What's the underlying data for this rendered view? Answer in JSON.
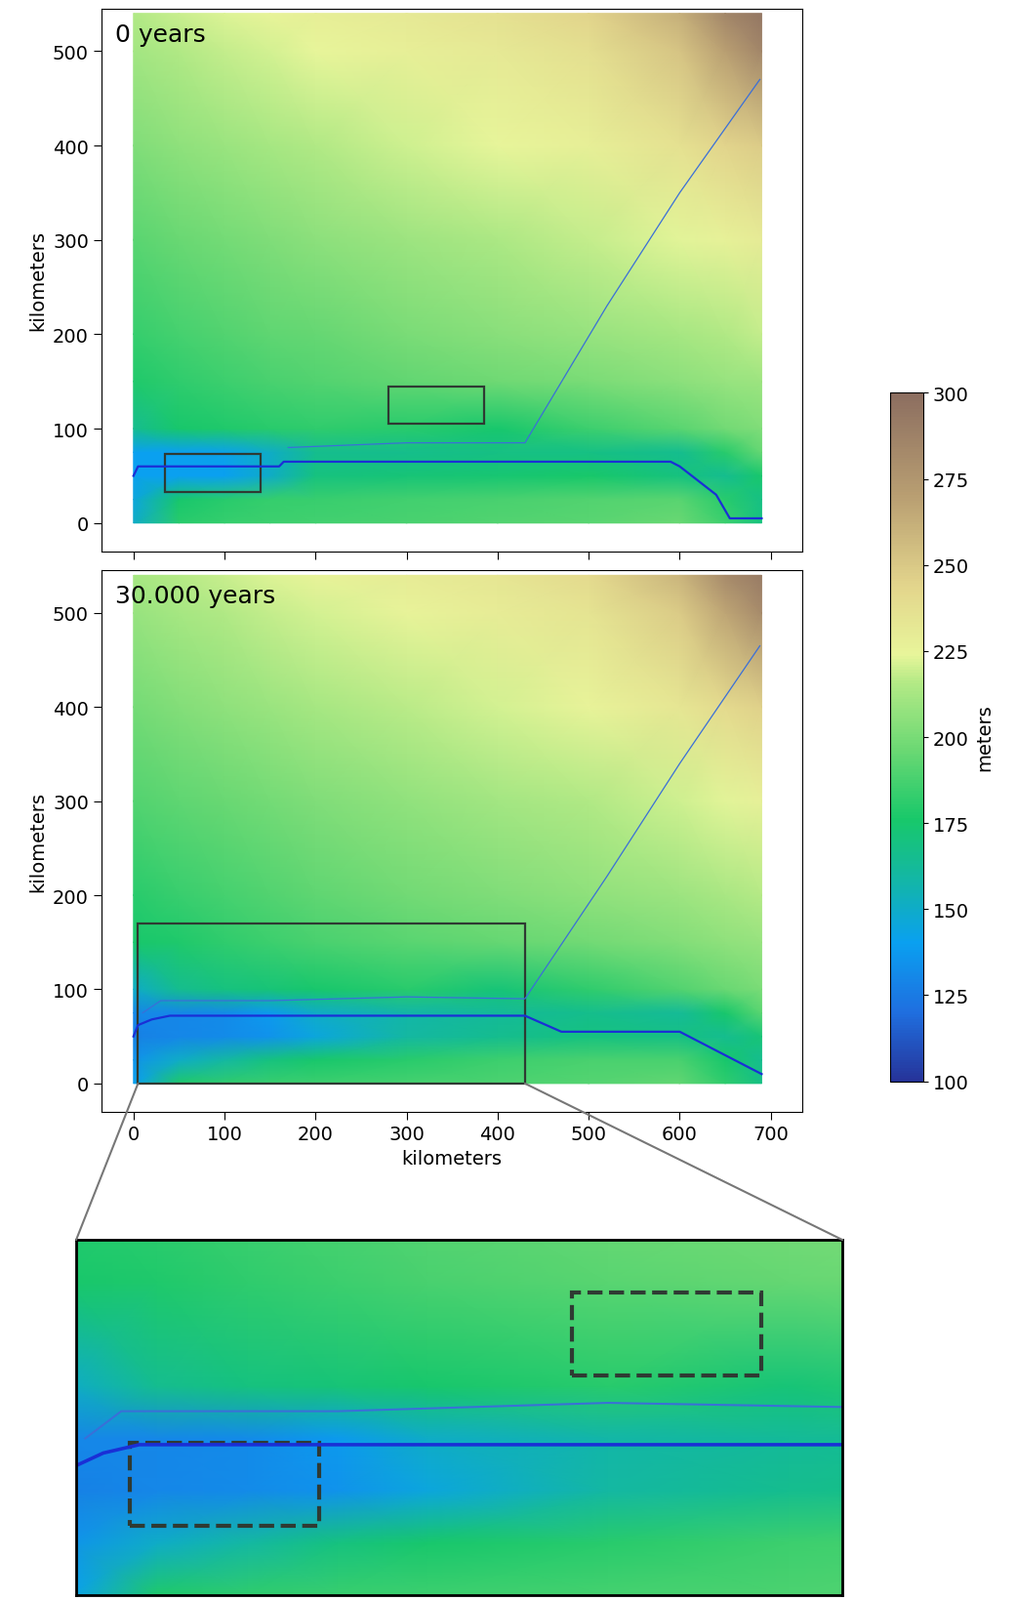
{
  "chart_data": [
    {
      "type": "heatmap",
      "title": "0 years",
      "ylabel": "kilometers",
      "tick_labels": "y",
      "xlim": [
        -35,
        735
      ],
      "ylim": [
        -30,
        545
      ],
      "xticks": [
        0,
        100,
        200,
        300,
        400,
        500,
        600,
        700
      ],
      "yticks": [
        0,
        100,
        200,
        300,
        400,
        500
      ],
      "x": [
        0,
        50,
        100,
        150,
        200,
        300,
        400,
        500,
        600,
        650,
        690
      ],
      "y": [
        0,
        25,
        50,
        75,
        100,
        150,
        200,
        300,
        400,
        500,
        540
      ],
      "values": [
        [
          150,
          180,
          183,
          185,
          186,
          188,
          190,
          192,
          196,
          185,
          170
        ],
        [
          145,
          175,
          180,
          183,
          184,
          186,
          188,
          190,
          192,
          180,
          168
        ],
        [
          140,
          140,
          140,
          150,
          170,
          172,
          174,
          176,
          170,
          165,
          175
        ],
        [
          140,
          140,
          142,
          150,
          165,
          166,
          168,
          168,
          165,
          180,
          195
        ],
        [
          165,
          175,
          178,
          180,
          182,
          180,
          175,
          185,
          192,
          198,
          202
        ],
        [
          178,
          182,
          185,
          188,
          190,
          194,
          197,
          200,
          205,
          208,
          210
        ],
        [
          183,
          187,
          190,
          193,
          195,
          200,
          204,
          208,
          212,
          215,
          218
        ],
        [
          192,
          196,
          199,
          202,
          205,
          210,
          214,
          218,
          223,
          226,
          230
        ],
        [
          202,
          206,
          209,
          212,
          215,
          220,
          224,
          228,
          236,
          244,
          248
        ],
        [
          211,
          215,
          218,
          221,
          224,
          228,
          232,
          238,
          252,
          270,
          285
        ],
        [
          215,
          219,
          222,
          225,
          228,
          232,
          236,
          244,
          262,
          285,
          295
        ]
      ],
      "rivers": [
        {
          "x": [
            0,
            5,
            100,
            160,
            165,
            590,
            600,
            640,
            655,
            690
          ],
          "y": [
            50,
            60,
            60,
            60,
            65,
            65,
            60,
            30,
            5,
            5
          ],
          "color": "#1a2fd6"
        },
        {
          "x": [
            688,
            600,
            520,
            430,
            300,
            170
          ],
          "y": [
            470,
            350,
            230,
            85,
            85,
            80
          ],
          "color": "#3a6fd8"
        }
      ],
      "boxes": [
        [
          35,
          33,
          105,
          40
        ],
        [
          280,
          105,
          105,
          40
        ]
      ]
    },
    {
      "type": "heatmap",
      "title": "30.000 years",
      "xlabel": "kilometers",
      "ylabel": "kilometers",
      "xlim": [
        -35,
        735
      ],
      "ylim": [
        -30,
        545
      ],
      "xticks": [
        0,
        100,
        200,
        300,
        400,
        500,
        600,
        700
      ],
      "yticks": [
        0,
        100,
        200,
        300,
        400,
        500
      ],
      "x": [
        0,
        50,
        100,
        150,
        200,
        300,
        400,
        500,
        600,
        650,
        690
      ],
      "y": [
        0,
        25,
        50,
        75,
        100,
        150,
        200,
        300,
        400,
        500,
        540
      ],
      "values": [
        [
          140,
          178,
          182,
          184,
          185,
          187,
          189,
          191,
          194,
          182,
          168
        ],
        [
          135,
          150,
          160,
          170,
          175,
          180,
          185,
          188,
          188,
          175,
          165
        ],
        [
          128,
          130,
          132,
          135,
          145,
          160,
          165,
          170,
          168,
          165,
          172
        ],
        [
          130,
          130,
          132,
          138,
          150,
          158,
          162,
          166,
          163,
          175,
          192
        ],
        [
          150,
          165,
          170,
          172,
          175,
          180,
          172,
          182,
          190,
          196,
          200
        ],
        [
          175,
          178,
          182,
          185,
          188,
          192,
          195,
          198,
          203,
          206,
          208
        ],
        [
          180,
          184,
          187,
          190,
          193,
          198,
          202,
          206,
          210,
          213,
          216
        ],
        [
          190,
          193,
          196,
          199,
          202,
          207,
          211,
          215,
          220,
          223,
          227
        ],
        [
          199,
          203,
          206,
          209,
          212,
          217,
          221,
          225,
          233,
          241,
          246
        ],
        [
          208,
          212,
          215,
          218,
          221,
          225,
          229,
          235,
          249,
          267,
          282
        ],
        [
          212,
          216,
          219,
          222,
          225,
          229,
          233,
          241,
          259,
          282,
          292
        ]
      ],
      "rivers": [
        {
          "x": [
            0,
            5,
            20,
            40,
            200,
            430,
            470,
            600,
            640,
            680,
            690
          ],
          "y": [
            50,
            62,
            68,
            72,
            72,
            72,
            55,
            55,
            35,
            15,
            10
          ],
          "color": "#1a2fd6"
        },
        {
          "x": [
            688,
            600,
            520,
            430,
            300,
            150,
            30,
            10
          ],
          "y": [
            465,
            340,
            220,
            90,
            92,
            88,
            88,
            75
          ],
          "color": "#3a6fd8"
        }
      ],
      "zoom": {
        "xlim": [
          5,
          430
        ],
        "ylim": [
          0,
          170
        ]
      },
      "inset_boxes": [
        [
          35,
          33,
          105,
          40
        ],
        [
          280,
          105,
          105,
          40
        ]
      ]
    }
  ],
  "colorbar": {
    "label": "meters",
    "range": [
      100,
      300
    ],
    "ticks": [
      100,
      125,
      150,
      175,
      200,
      225,
      250,
      275,
      300
    ]
  }
}
